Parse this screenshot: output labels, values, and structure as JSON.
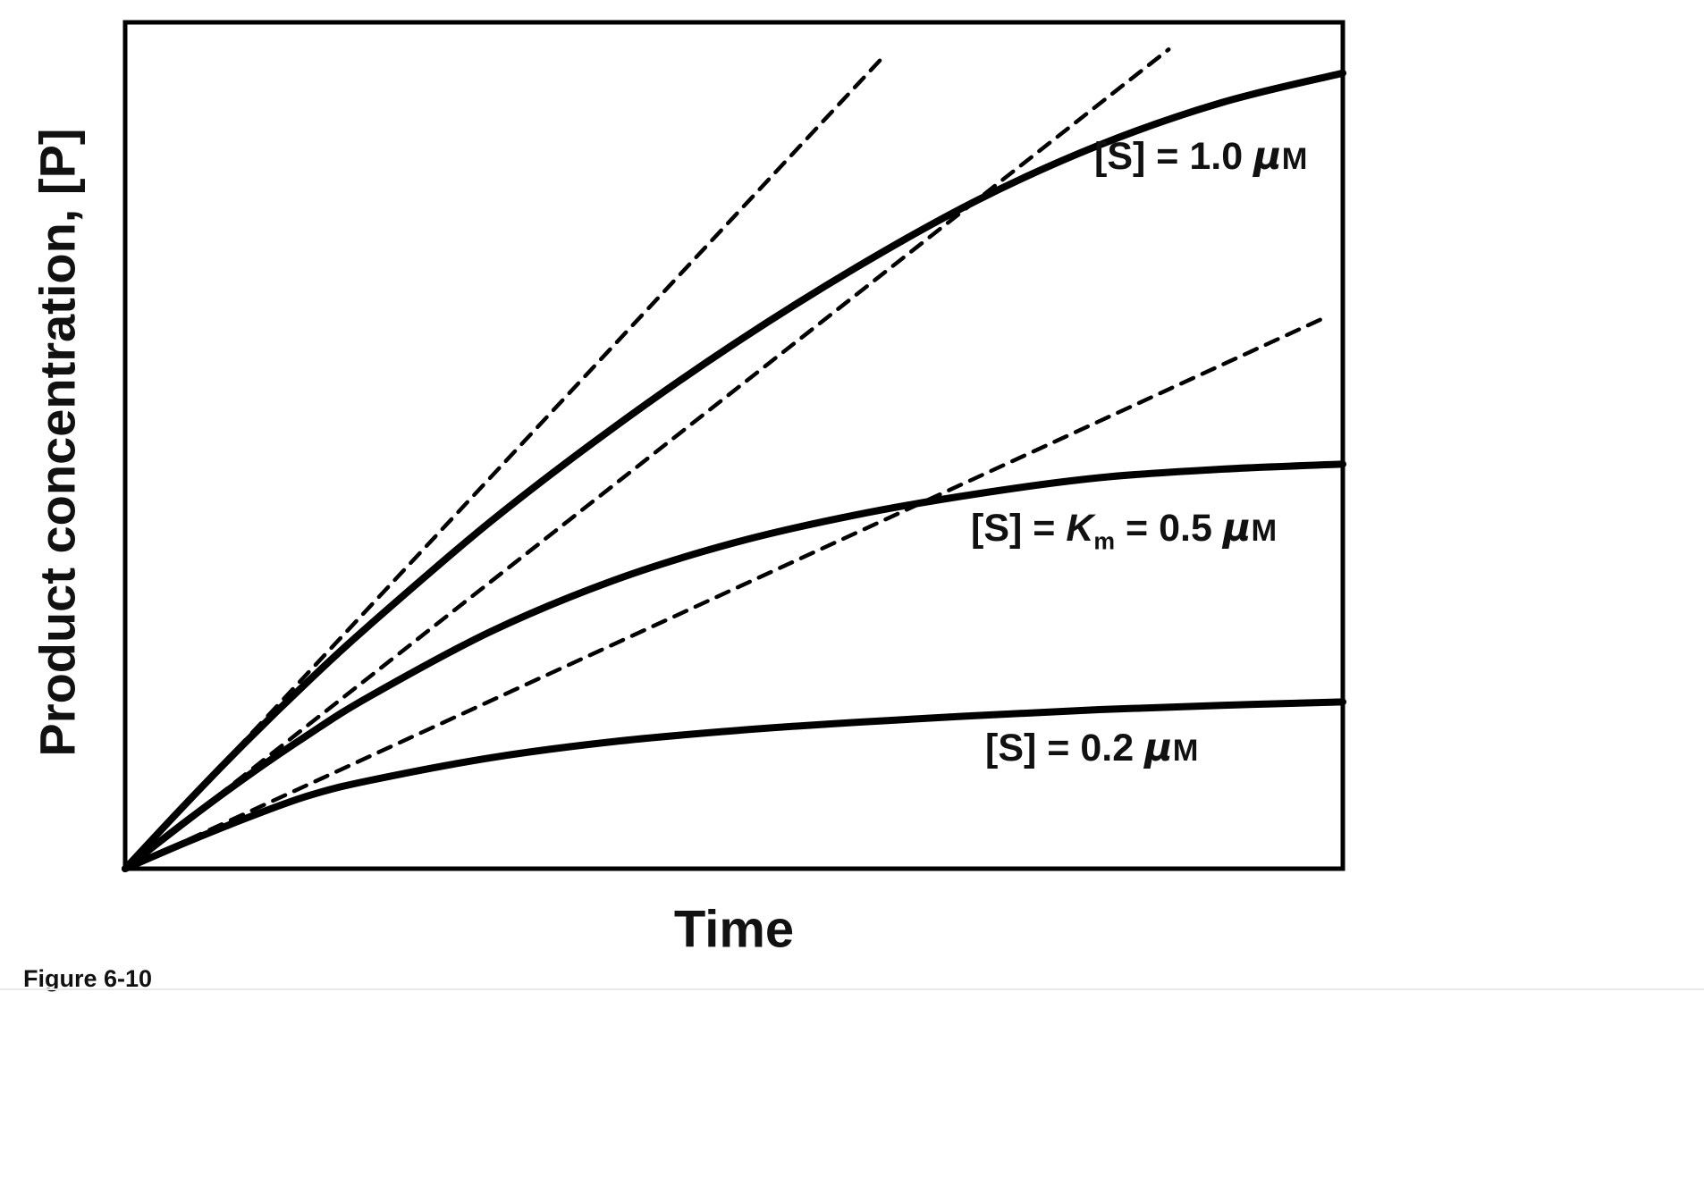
{
  "figure": {
    "caption": "Figure 6-10",
    "xlabel": "Time",
    "ylabel": "Product concentration, [P]"
  },
  "chart_data": {
    "type": "line",
    "title": "",
    "xlabel": "Time",
    "ylabel": "Product concentration, [P]",
    "axis_ticks": "none (unscaled axes)",
    "line_color": "#000000",
    "x_range": [
      0,
      1
    ],
    "y_range": [
      0,
      1
    ],
    "x": [
      0,
      0.05,
      0.1,
      0.15,
      0.2,
      0.3,
      0.4,
      0.5,
      0.6,
      0.7,
      0.8,
      0.9,
      1
    ],
    "series": [
      {
        "id": "tangent-s-1.0",
        "name": "initial-rate tangent for [S] = 1.0 uM",
        "style": "dashed",
        "x": [
          0,
          0.625
        ],
        "values": [
          0,
          0.963
        ]
      },
      {
        "id": "tangent-s-0.5",
        "name": "initial-rate tangent for [S] = 0.5 uM",
        "style": "dashed",
        "x": [
          0,
          0.857
        ],
        "values": [
          0,
          0.968
        ]
      },
      {
        "id": "tangent-s-0.2",
        "name": "initial-rate tangent for [S] = 0.2 uM",
        "style": "dashed",
        "x": [
          0,
          0.985
        ],
        "values": [
          0,
          0.651
        ]
      },
      {
        "id": "curve-s-1.0",
        "name": "[S] = 1.0 μM",
        "style": "solid",
        "values": [
          0,
          0.077,
          0.151,
          0.221,
          0.287,
          0.41,
          0.52,
          0.62,
          0.71,
          0.79,
          0.855,
          0.905,
          0.94
        ]
      },
      {
        "id": "curve-s-0.5",
        "name": "[S] = Km = 0.5 μM",
        "style": "solid",
        "values": [
          0,
          0.056,
          0.109,
          0.158,
          0.203,
          0.28,
          0.34,
          0.385,
          0.418,
          0.443,
          0.462,
          0.472,
          0.478
        ]
      },
      {
        "id": "curve-s-0.2",
        "name": "[S] = 0.2 μM",
        "style": "solid",
        "values": [
          0,
          0.031,
          0.06,
          0.086,
          0.104,
          0.131,
          0.15,
          0.163,
          0.173,
          0.181,
          0.188,
          0.193,
          0.197
        ]
      }
    ]
  },
  "curve_labels": [
    {
      "pre": "[S]",
      "eq": " = ",
      "k": "",
      "ksub": "",
      "eq2": "",
      "val": "1.0 ",
      "mu": "μ",
      "m": "M"
    },
    {
      "pre": "[S]",
      "eq": " = ",
      "k": "K",
      "ksub": "m",
      "eq2": " = ",
      "val": "0.5 ",
      "mu": "μ",
      "m": "M"
    },
    {
      "pre": "[S]",
      "eq": " = ",
      "k": "",
      "ksub": "",
      "eq2": "",
      "val": "0.2 ",
      "mu": "μ",
      "m": "M"
    }
  ]
}
